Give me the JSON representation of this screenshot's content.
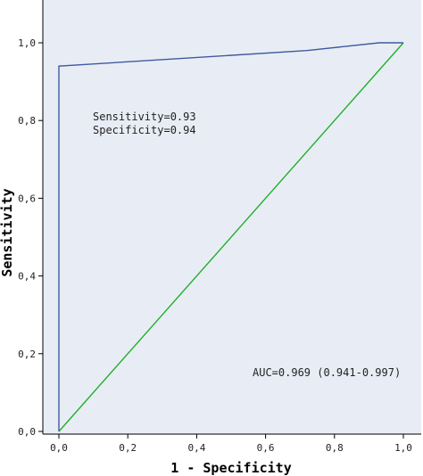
{
  "chart_data": {
    "type": "line",
    "xlabel": "1 - Specificity",
    "ylabel": "Sensitivity",
    "xlim": [
      0,
      1
    ],
    "ylim": [
      0,
      1
    ],
    "x_ticks": [
      "0,0",
      "0,2",
      "0,4",
      "0,6",
      "0,8",
      "1,0"
    ],
    "y_ticks": [
      "0,0",
      "0,2",
      "0,4",
      "0,6",
      "0,8",
      "1,0"
    ],
    "tick_values": [
      0,
      0.2,
      0.4,
      0.6,
      0.8,
      1.0
    ],
    "grid": false,
    "series": [
      {
        "color": "#3f5aa0",
        "x": [
          0.0,
          0.0,
          0.72,
          0.93,
          1.0
        ],
        "y": [
          0.0,
          0.94,
          0.98,
          1.0,
          1.0
        ]
      },
      {
        "color": "#22b02a",
        "x": [
          0.0,
          1.0
        ],
        "y": [
          0.0,
          1.0
        ]
      }
    ],
    "annotations": {
      "sensitivity": "Sensitivity=0.93",
      "specificity": "Specificity=0.94",
      "auc": "AUC=0.969 (0.941-0.997)"
    },
    "plot_background": "#e8edf5"
  }
}
